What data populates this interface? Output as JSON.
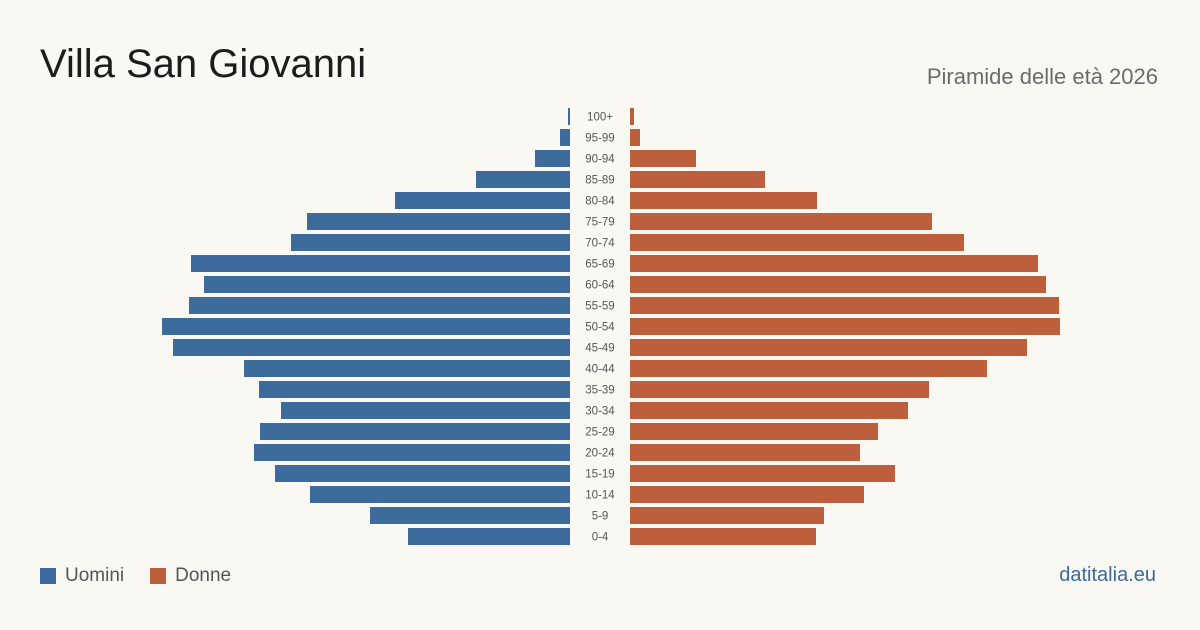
{
  "header": {
    "title": "Villa San Giovanni",
    "subtitle": "Piramide delle età 2026"
  },
  "legend": {
    "male_label": "Uomini",
    "female_label": "Donne"
  },
  "footer": {
    "source": "datitalia.eu"
  },
  "colors": {
    "male": "#3d6b9c",
    "female": "#bd5e3d"
  },
  "chart_data": {
    "type": "bar",
    "orientation": "horizontal-pyramid",
    "categories": [
      "0-4",
      "5-9",
      "10-14",
      "15-19",
      "20-24",
      "25-29",
      "30-34",
      "35-39",
      "40-44",
      "45-49",
      "50-54",
      "55-59",
      "60-64",
      "65-69",
      "70-74",
      "75-79",
      "80-84",
      "85-89",
      "90-94",
      "95-99",
      "100+"
    ],
    "series": [
      {
        "name": "Uomini",
        "values": [
          162,
          200,
          260,
          295,
          316,
          310,
          289,
          311,
          326,
          397,
          408,
          381,
          366,
          379,
          279,
          263,
          175,
          94,
          35,
          10,
          2
        ]
      },
      {
        "name": "Donne",
        "values": [
          186,
          194,
          234,
          265,
          230,
          248,
          278,
          299,
          357,
          397,
          430,
          429,
          416,
          408,
          334,
          302,
          187,
          135,
          66,
          10,
          4
        ]
      }
    ],
    "xlim": [
      0,
      430
    ],
    "grid": false,
    "legend_position": "bottom-left"
  }
}
